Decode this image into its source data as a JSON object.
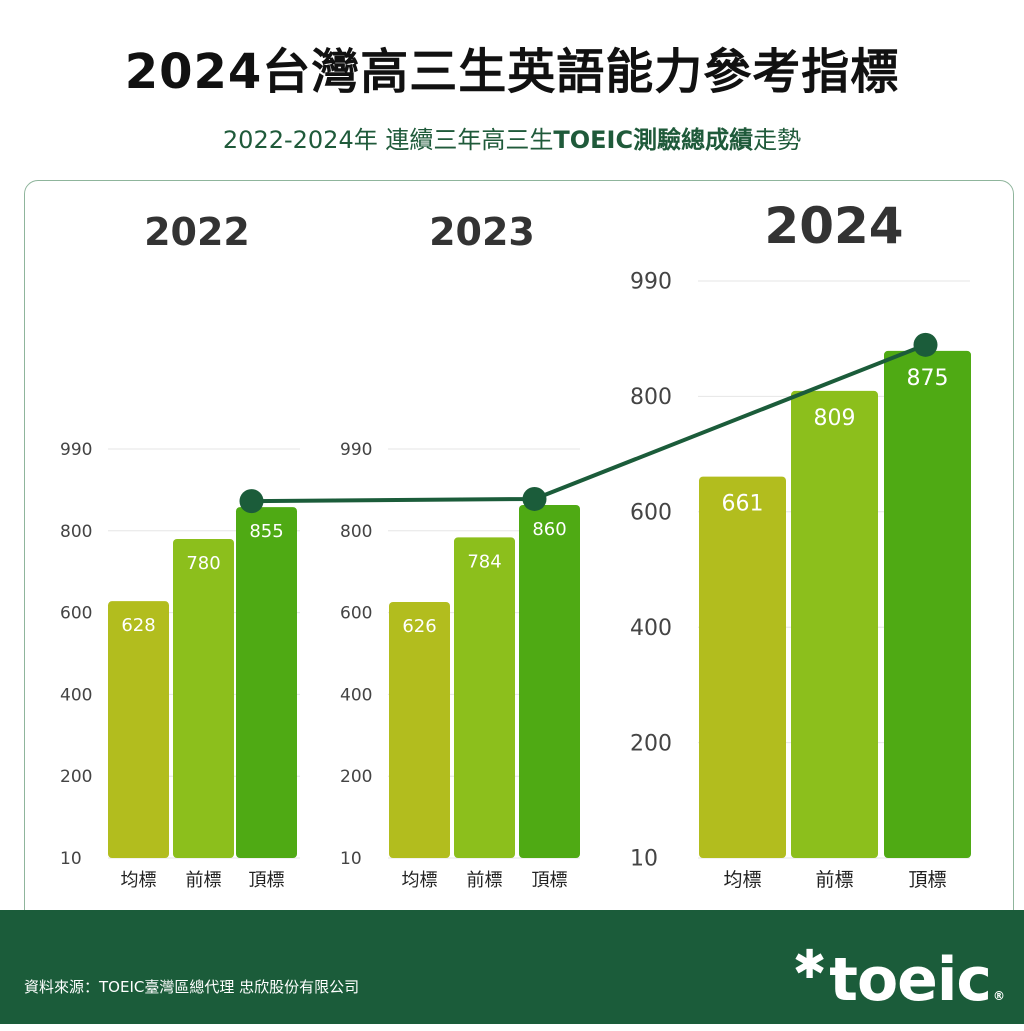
{
  "header": {
    "title": "2024台灣高三生英語能力參考指標",
    "subtitle_pre": "2022-2024年 連續三年高三生",
    "subtitle_bold": "TOEIC測驗總成績",
    "subtitle_post": "走勢"
  },
  "footer": {
    "source": "資料來源：TOEIC臺灣區總代理 忠欣股份有限公司",
    "logo_text": "toeic",
    "logo_star": "✱",
    "logo_reg": "®"
  },
  "colors": {
    "bar_avg": "#b2bd1e",
    "bar_front": "#8cbf1c",
    "bar_top": "#4faa14",
    "trend_line": "#1b5c3a",
    "footer_bg": "#1b5c3a",
    "grid": "#e6e6e6"
  },
  "chart_data": [
    {
      "type": "bar",
      "title": "2022",
      "categories": [
        "均標",
        "前標",
        "頂標"
      ],
      "values": [
        628,
        780,
        855
      ],
      "ylim": [
        10,
        990
      ],
      "yticks": [
        "990",
        "800",
        "600",
        "400",
        "200",
        "10"
      ],
      "grid": true
    },
    {
      "type": "bar",
      "title": "2023",
      "categories": [
        "均標",
        "前標",
        "頂標"
      ],
      "values": [
        626,
        784,
        860
      ],
      "ylim": [
        10,
        990
      ],
      "yticks": [
        "990",
        "800",
        "600",
        "400",
        "200",
        "10"
      ],
      "grid": true
    },
    {
      "type": "bar",
      "title": "2024",
      "categories": [
        "均標",
        "前標",
        "頂標"
      ],
      "values": [
        661,
        809,
        875
      ],
      "ylim": [
        10,
        990
      ],
      "yticks": [
        "990",
        "800",
        "600",
        "400",
        "200",
        "10"
      ],
      "grid": true
    }
  ],
  "trend": {
    "type": "line",
    "x": [
      "2022",
      "2023",
      "2024"
    ],
    "values": [
      855,
      860,
      875
    ]
  }
}
